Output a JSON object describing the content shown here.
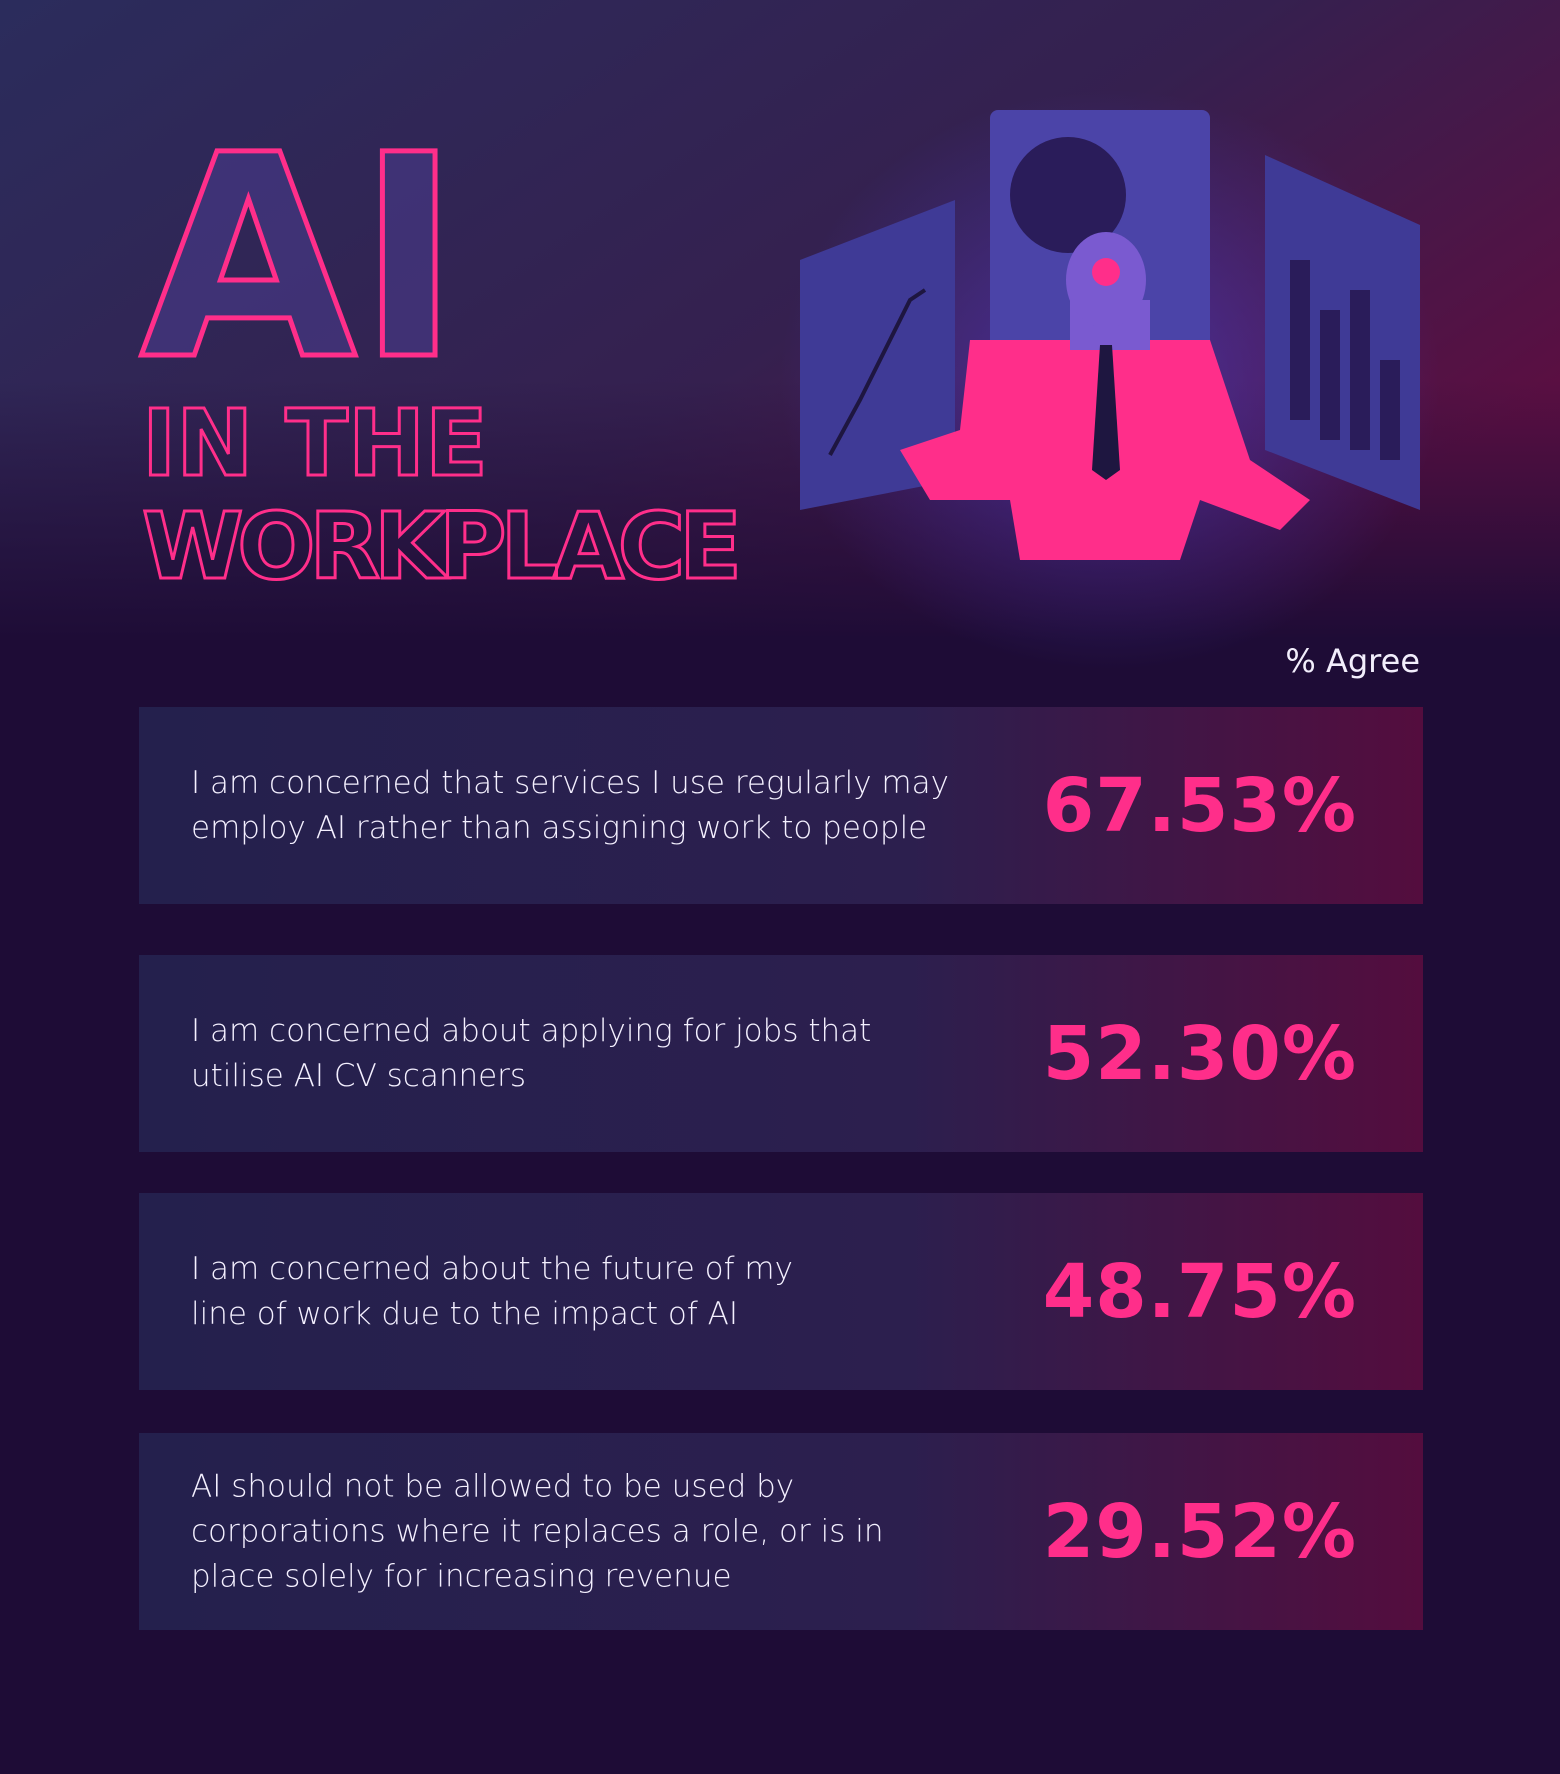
{
  "header": {
    "title": "AI",
    "subtitle_lines": [
      "IN THE",
      "WORKPLACE"
    ]
  },
  "table": {
    "column_header": "% Agree",
    "rows": [
      {
        "statement_lines": [
          "I am concerned that services I use regularly may",
          "employ AI rather than assigning work to people"
        ],
        "value": "67.53%"
      },
      {
        "statement_lines": [
          "I am concerned about applying for jobs that",
          "utilise AI CV scanners"
        ],
        "value": "52.30%"
      },
      {
        "statement_lines": [
          "I am concerned about the future of my",
          "line of work due to the impact of AI"
        ],
        "value": "48.75%"
      },
      {
        "statement_lines": [
          "AI should not be allowed to be used by",
          "corporations where it replaces a role, or is in",
          "place solely for increasing revenue"
        ],
        "value": "29.52%"
      }
    ]
  }
}
